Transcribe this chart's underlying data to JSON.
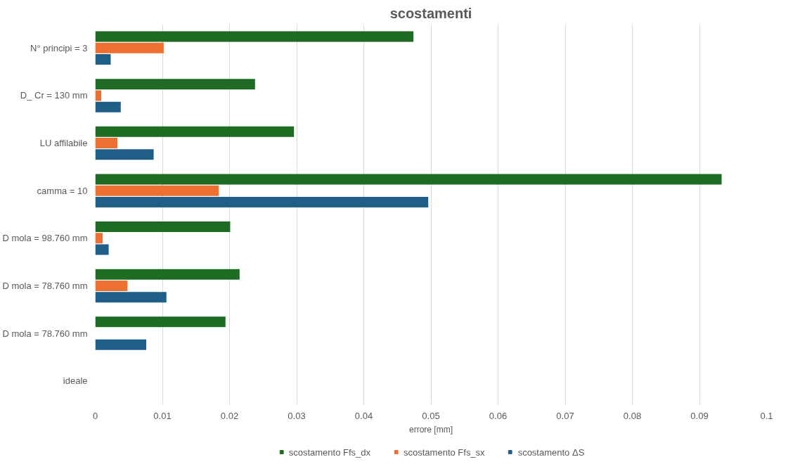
{
  "chart_data": {
    "type": "bar",
    "orientation": "horizontal",
    "title": "scostamenti",
    "xlabel": "errore [mm]",
    "categories": [
      "N° principi = 3",
      "D_ Cr = 130 mm",
      "LU affilabile",
      "camma = 10",
      "D mola = 98.760 mm",
      "D mola = 78.760 mm",
      "D mola = 78.760 mm",
      "ideale"
    ],
    "series": [
      {
        "name": "scostamento Ffs_dx",
        "color": "#1e6b24",
        "values": [
          0.0474,
          0.0238,
          0.0296,
          0.0933,
          0.0201,
          0.0215,
          0.0194,
          0
        ]
      },
      {
        "name": "scostamento Ffs_sx",
        "color": "#ed7031",
        "values": [
          0.0102,
          0.0009,
          0.0033,
          0.0184,
          0.0011,
          0.0048,
          0,
          0
        ]
      },
      {
        "name": "scostamento ΔS",
        "color": "#1f5f87",
        "values": [
          0.0023,
          0.0038,
          0.0087,
          0.0496,
          0.002,
          0.0106,
          0.0076,
          0
        ]
      }
    ],
    "xlim": [
      0,
      0.1
    ],
    "xticks": [
      0,
      0.01,
      0.02,
      0.03,
      0.04,
      0.05,
      0.06,
      0.07,
      0.08,
      0.09,
      0.1
    ],
    "grid": "x",
    "legend": "bottom"
  }
}
